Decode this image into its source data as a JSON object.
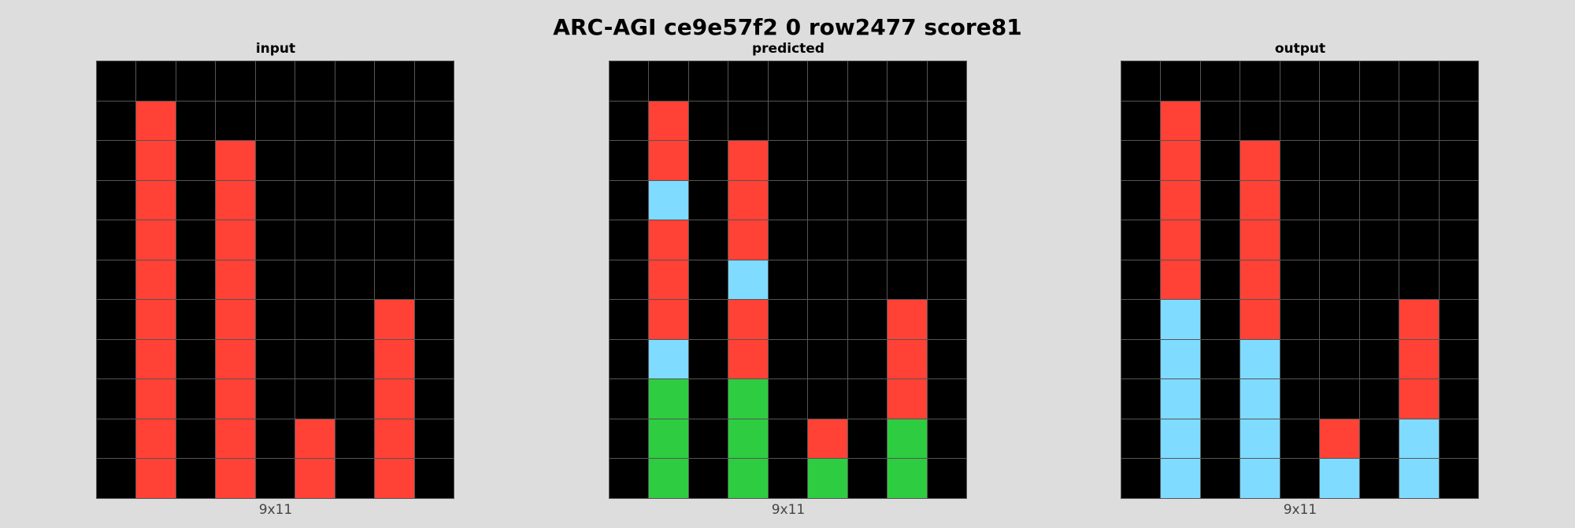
{
  "title": "ARC-AGI ce9e57f2 0 row2477 score81",
  "palette": {
    "0": "#000000",
    "2": "#ff4136",
    "3": "#2ecc40",
    "8": "#7fdbff"
  },
  "panels": [
    {
      "label": "input",
      "size_label": "9x11",
      "grid": [
        [
          0,
          0,
          0,
          0,
          0,
          0,
          0,
          0,
          0
        ],
        [
          0,
          2,
          0,
          0,
          0,
          0,
          0,
          0,
          0
        ],
        [
          0,
          2,
          0,
          2,
          0,
          0,
          0,
          0,
          0
        ],
        [
          0,
          2,
          0,
          2,
          0,
          0,
          0,
          0,
          0
        ],
        [
          0,
          2,
          0,
          2,
          0,
          0,
          0,
          0,
          0
        ],
        [
          0,
          2,
          0,
          2,
          0,
          0,
          0,
          0,
          0
        ],
        [
          0,
          2,
          0,
          2,
          0,
          0,
          0,
          2,
          0
        ],
        [
          0,
          2,
          0,
          2,
          0,
          0,
          0,
          2,
          0
        ],
        [
          0,
          2,
          0,
          2,
          0,
          0,
          0,
          2,
          0
        ],
        [
          0,
          2,
          0,
          2,
          0,
          2,
          0,
          2,
          0
        ],
        [
          0,
          2,
          0,
          2,
          0,
          2,
          0,
          2,
          0
        ]
      ]
    },
    {
      "label": "predicted",
      "size_label": "9x11",
      "grid": [
        [
          0,
          0,
          0,
          0,
          0,
          0,
          0,
          0,
          0
        ],
        [
          0,
          2,
          0,
          0,
          0,
          0,
          0,
          0,
          0
        ],
        [
          0,
          2,
          0,
          2,
          0,
          0,
          0,
          0,
          0
        ],
        [
          0,
          8,
          0,
          2,
          0,
          0,
          0,
          0,
          0
        ],
        [
          0,
          2,
          0,
          2,
          0,
          0,
          0,
          0,
          0
        ],
        [
          0,
          2,
          0,
          8,
          0,
          0,
          0,
          0,
          0
        ],
        [
          0,
          2,
          0,
          2,
          0,
          0,
          0,
          2,
          0
        ],
        [
          0,
          8,
          0,
          2,
          0,
          0,
          0,
          2,
          0
        ],
        [
          0,
          3,
          0,
          3,
          0,
          0,
          0,
          2,
          0
        ],
        [
          0,
          3,
          0,
          3,
          0,
          2,
          0,
          3,
          0
        ],
        [
          0,
          3,
          0,
          3,
          0,
          3,
          0,
          3,
          0
        ]
      ]
    },
    {
      "label": "output",
      "size_label": "9x11",
      "grid": [
        [
          0,
          0,
          0,
          0,
          0,
          0,
          0,
          0,
          0
        ],
        [
          0,
          2,
          0,
          0,
          0,
          0,
          0,
          0,
          0
        ],
        [
          0,
          2,
          0,
          2,
          0,
          0,
          0,
          0,
          0
        ],
        [
          0,
          2,
          0,
          2,
          0,
          0,
          0,
          0,
          0
        ],
        [
          0,
          2,
          0,
          2,
          0,
          0,
          0,
          0,
          0
        ],
        [
          0,
          2,
          0,
          2,
          0,
          0,
          0,
          0,
          0
        ],
        [
          0,
          8,
          0,
          2,
          0,
          0,
          0,
          2,
          0
        ],
        [
          0,
          8,
          0,
          8,
          0,
          0,
          0,
          2,
          0
        ],
        [
          0,
          8,
          0,
          8,
          0,
          0,
          0,
          2,
          0
        ],
        [
          0,
          8,
          0,
          8,
          0,
          2,
          0,
          8,
          0
        ],
        [
          0,
          8,
          0,
          8,
          0,
          8,
          0,
          8,
          0
        ]
      ]
    }
  ]
}
